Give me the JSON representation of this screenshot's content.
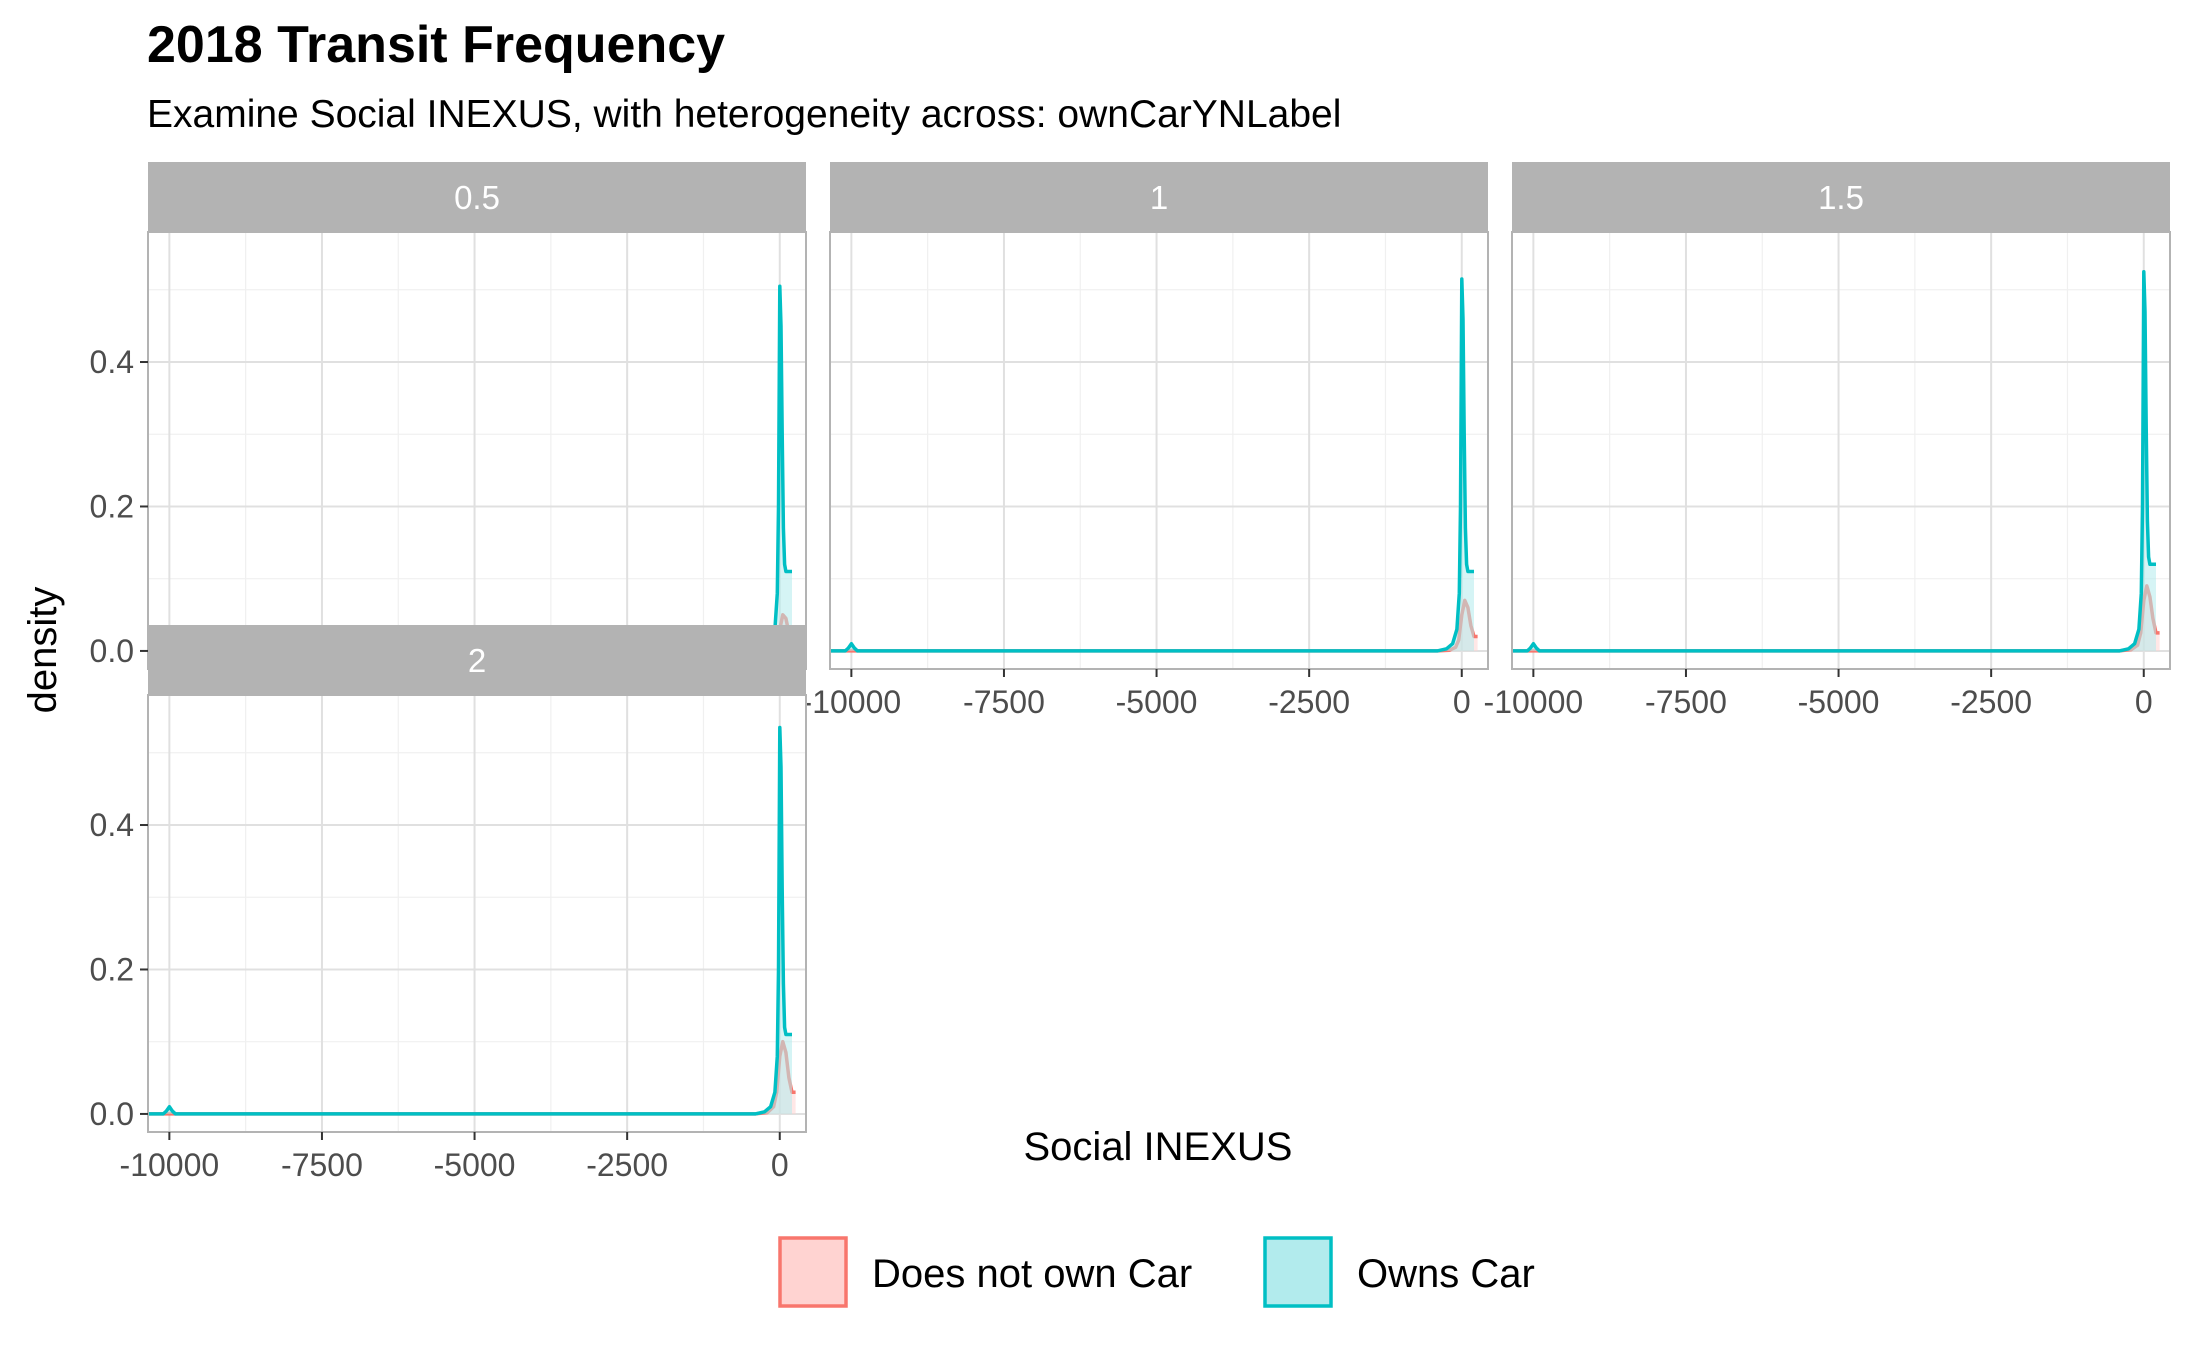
{
  "chart_data": {
    "type": "area",
    "title": "2018 Transit Frequency",
    "subtitle": "Examine Social INEXUS, with heterogeneity across: ownCarYNLabel",
    "xlabel": "Social INEXUS",
    "ylabel": "density",
    "xlim": [
      -10350,
      430
    ],
    "ylim": [
      -0.025,
      0.58
    ],
    "x_ticks": [
      -10000,
      -7500,
      -5000,
      -2500,
      0
    ],
    "x_tick_labels": [
      "-10000",
      "-7500",
      "-5000",
      "-2500",
      "0"
    ],
    "y_ticks": [
      0.0,
      0.2,
      0.4
    ],
    "y_tick_labels": [
      "0.0",
      "0.2",
      "0.4"
    ],
    "grid": true,
    "legend_position": "bottom",
    "legend": [
      {
        "name": "Does not own Car",
        "line_color": "#F8766D",
        "fill_color": "#FFD3D1"
      },
      {
        "name": "Owns Car",
        "line_color": "#00BFC4",
        "fill_color": "#B2EBED"
      }
    ],
    "facets": [
      {
        "label": "0.5",
        "series": [
          {
            "name": "Does not own Car",
            "x": [
              -10350,
              -400,
              -200,
              -100,
              -50,
              0,
              50,
              100,
              150,
              200,
              260
            ],
            "y": [
              0,
              0,
              0.001,
              0.004,
              0.01,
              0.03,
              0.05,
              0.045,
              0.025,
              0.012,
              0.012
            ]
          },
          {
            "name": "Owns Car",
            "x": [
              -10350,
              -10100,
              -10050,
              -10000,
              -9950,
              -9900,
              -400,
              -250,
              -150,
              -80,
              -40,
              -20,
              0,
              20,
              40,
              60,
              80,
              100,
              120,
              140,
              160,
              200
            ],
            "y": [
              0,
              0,
              0.003,
              0.008,
              0.003,
              0,
              0,
              0.003,
              0.01,
              0.03,
              0.08,
              0.2,
              0.505,
              0.45,
              0.3,
              0.17,
              0.12,
              0.11,
              0.11,
              0.11,
              0.11,
              0.11
            ]
          }
        ]
      },
      {
        "label": "1",
        "series": [
          {
            "name": "Does not own Car",
            "x": [
              -10350,
              -400,
              -200,
              -100,
              -50,
              0,
              50,
              100,
              150,
              200,
              260
            ],
            "y": [
              0,
              0,
              0.001,
              0.005,
              0.015,
              0.05,
              0.07,
              0.06,
              0.035,
              0.02,
              0.02
            ]
          },
          {
            "name": "Owns Car",
            "x": [
              -10350,
              -10100,
              -10050,
              -10000,
              -9950,
              -9900,
              -400,
              -250,
              -150,
              -80,
              -40,
              -20,
              0,
              20,
              40,
              60,
              80,
              100,
              120,
              140,
              160,
              200
            ],
            "y": [
              0,
              0,
              0.004,
              0.01,
              0.004,
              0,
              0,
              0.003,
              0.01,
              0.03,
              0.08,
              0.2,
              0.515,
              0.46,
              0.3,
              0.17,
              0.12,
              0.11,
              0.11,
              0.11,
              0.11,
              0.11
            ]
          }
        ]
      },
      {
        "label": "1.5",
        "series": [
          {
            "name": "Does not own Car",
            "x": [
              -10350,
              -400,
              -200,
              -100,
              -50,
              0,
              50,
              100,
              150,
              200,
              260
            ],
            "y": [
              0,
              0,
              0.002,
              0.008,
              0.025,
              0.07,
              0.09,
              0.075,
              0.045,
              0.025,
              0.025
            ]
          },
          {
            "name": "Owns Car",
            "x": [
              -10350,
              -10100,
              -10050,
              -10000,
              -9950,
              -9900,
              -400,
              -250,
              -150,
              -80,
              -40,
              -20,
              0,
              20,
              40,
              60,
              80,
              100,
              120,
              140,
              160,
              200
            ],
            "y": [
              0,
              0,
              0.004,
              0.01,
              0.004,
              0,
              0,
              0.003,
              0.01,
              0.03,
              0.08,
              0.2,
              0.525,
              0.47,
              0.31,
              0.18,
              0.13,
              0.12,
              0.12,
              0.12,
              0.12,
              0.12
            ]
          }
        ]
      },
      {
        "label": "2",
        "series": [
          {
            "name": "Does not own Car",
            "x": [
              -10350,
              -400,
              -200,
              -100,
              -50,
              0,
              50,
              100,
              150,
              200,
              260
            ],
            "y": [
              0,
              0,
              0.002,
              0.01,
              0.03,
              0.08,
              0.1,
              0.085,
              0.05,
              0.03,
              0.03
            ]
          },
          {
            "name": "Owns Car",
            "x": [
              -10350,
              -10100,
              -10050,
              -10000,
              -9950,
              -9900,
              -400,
              -250,
              -150,
              -80,
              -40,
              -20,
              0,
              20,
              40,
              60,
              80,
              100,
              120,
              140,
              160,
              200
            ],
            "y": [
              0,
              0,
              0.004,
              0.01,
              0.004,
              0,
              0,
              0.003,
              0.01,
              0.03,
              0.08,
              0.2,
              0.535,
              0.48,
              0.31,
              0.18,
              0.12,
              0.11,
              0.11,
              0.11,
              0.11,
              0.11
            ]
          }
        ]
      }
    ]
  }
}
